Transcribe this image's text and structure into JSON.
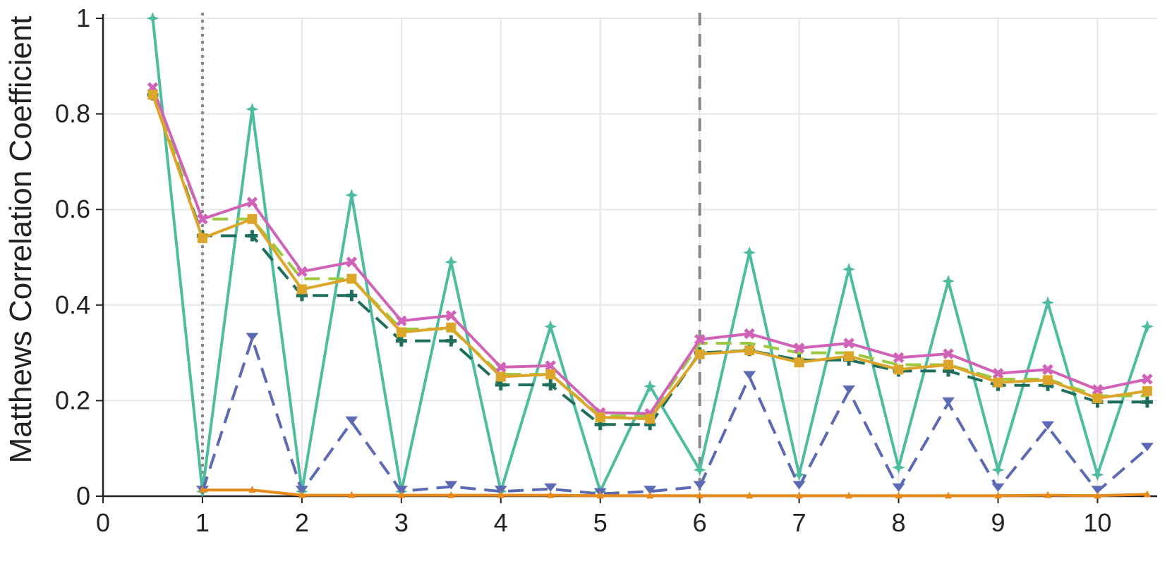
{
  "chart_data": {
    "type": "line",
    "title": "",
    "xlabel": "",
    "ylabel": "Matthews Correlation Coefficient",
    "xlim": [
      0,
      10.6
    ],
    "ylim": [
      0,
      1
    ],
    "xticks": [
      "0",
      "1",
      "2",
      "3",
      "4",
      "5",
      "6",
      "7",
      "8",
      "9",
      "10"
    ],
    "yticks": [
      "0",
      "0.2",
      "0.4",
      "0.6",
      "0.8",
      "1"
    ],
    "grid": true,
    "legend": "none",
    "vlines": [
      {
        "x": 1,
        "style": "dotted",
        "color": "#888888"
      },
      {
        "x": 6,
        "style": "dashed",
        "color": "#888888"
      }
    ],
    "x": [
      0.5,
      1,
      1.5,
      2,
      2.5,
      3,
      3.5,
      4,
      4.5,
      5,
      5.5,
      6,
      6.5,
      7,
      7.5,
      8,
      8.5,
      9,
      9.5,
      10,
      10.5
    ],
    "series": [
      {
        "color": "#4ebc9e",
        "dash": "solid",
        "marker": "star",
        "values": [
          1.0,
          0.01,
          0.81,
          0.01,
          0.63,
          0.01,
          0.49,
          0.01,
          0.355,
          0.01,
          0.23,
          0.055,
          0.51,
          0.045,
          0.475,
          0.06,
          0.45,
          0.055,
          0.405,
          0.045,
          0.355
        ]
      },
      {
        "color": "#5b6ab3",
        "dash": "dashed",
        "marker": "tri_down",
        "values": [
          null,
          0.01,
          0.33,
          0.01,
          0.155,
          0.01,
          0.02,
          0.01,
          0.015,
          0.005,
          0.01,
          0.02,
          0.25,
          0.02,
          0.22,
          0.015,
          0.195,
          0.015,
          0.145,
          0.01,
          0.1
        ]
      },
      {
        "color": "#e88a1c",
        "dash": "solid",
        "marker": "tri_up",
        "values": [
          null,
          0.013,
          0.013,
          0.002,
          0.002,
          0.002,
          0.002,
          0.002,
          0.002,
          0.001,
          0.001,
          0.001,
          0.001,
          0.001,
          0.001,
          0.001,
          0.001,
          0.001,
          0.002,
          0.001,
          0.004
        ]
      },
      {
        "color": "#1f6e5c",
        "dash": "dashed",
        "marker": "plus",
        "values": [
          0.84,
          0.545,
          0.545,
          0.42,
          0.42,
          0.325,
          0.325,
          0.233,
          0.233,
          0.15,
          0.15,
          0.3,
          0.305,
          0.285,
          0.285,
          0.262,
          0.262,
          0.232,
          0.232,
          0.197,
          0.197
        ]
      },
      {
        "color": "#9cc93f",
        "dash": "dashed",
        "marker": "none",
        "values": [
          0.84,
          0.58,
          0.58,
          0.455,
          0.455,
          0.35,
          0.35,
          0.255,
          0.255,
          0.168,
          0.168,
          0.32,
          0.32,
          0.3,
          0.3,
          0.275,
          0.275,
          0.245,
          0.245,
          0.21,
          0.21
        ]
      },
      {
        "color": "#d063b8",
        "dash": "solid",
        "marker": "x",
        "values": [
          0.855,
          0.58,
          0.615,
          0.47,
          0.49,
          0.367,
          0.378,
          0.27,
          0.273,
          0.175,
          0.173,
          0.328,
          0.34,
          0.31,
          0.32,
          0.29,
          0.298,
          0.257,
          0.265,
          0.223,
          0.245
        ]
      },
      {
        "color": "#dba62a",
        "dash": "solid",
        "marker": "square",
        "values": [
          0.84,
          0.54,
          0.58,
          0.433,
          0.455,
          0.343,
          0.353,
          0.25,
          0.255,
          0.165,
          0.162,
          0.297,
          0.305,
          0.28,
          0.293,
          0.265,
          0.275,
          0.238,
          0.243,
          0.205,
          0.22
        ]
      }
    ]
  }
}
